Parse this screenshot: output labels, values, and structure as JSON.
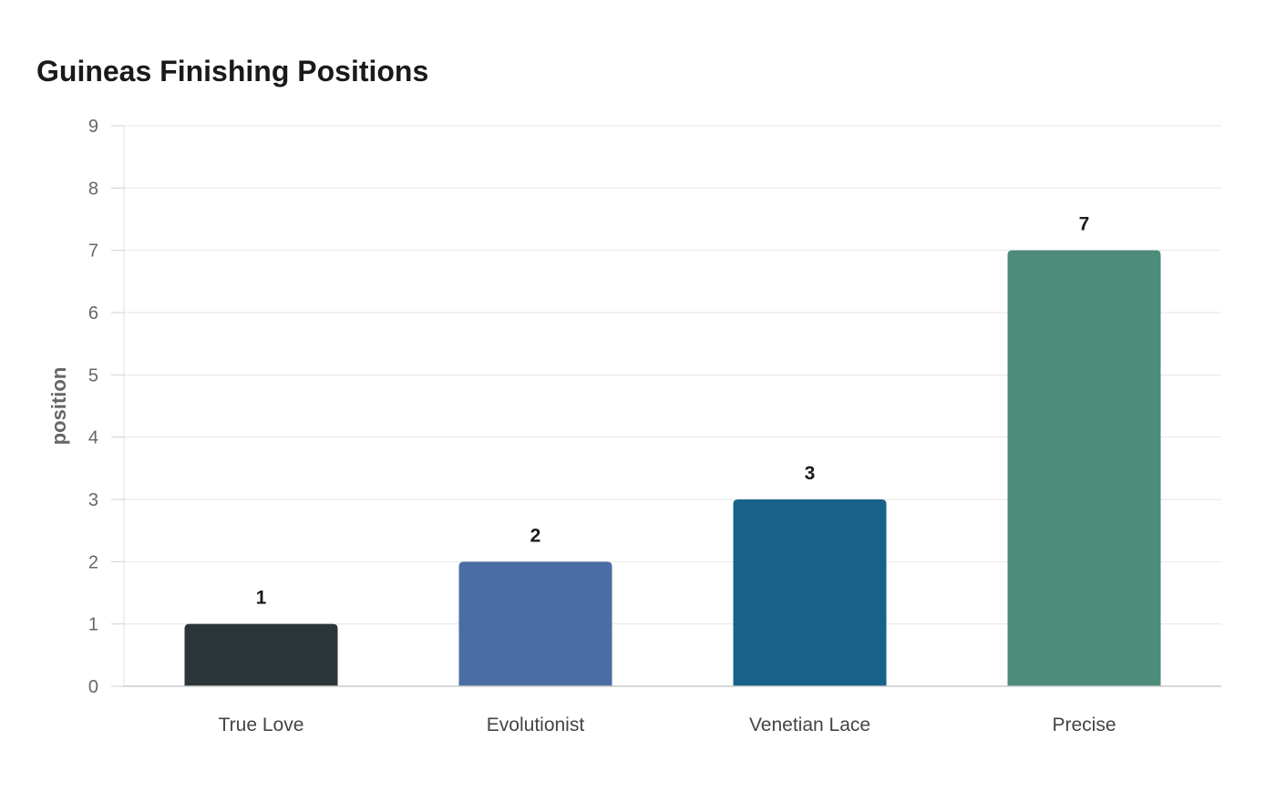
{
  "chart_data": {
    "type": "bar",
    "title": "Guineas Finishing Positions",
    "xlabel": "",
    "ylabel": "position",
    "categories": [
      "True Love",
      "Evolutionist",
      "Venetian Lace",
      "Precise"
    ],
    "values": [
      1,
      2,
      3,
      7
    ],
    "ylim": [
      0,
      9
    ],
    "yticks": [
      "0",
      "1",
      "2",
      "3",
      "4",
      "5",
      "6",
      "7",
      "8",
      "9"
    ],
    "data_labels": [
      "1",
      "2",
      "3",
      "7"
    ],
    "bar_colors": [
      "#2c3538",
      "#4a6ea3",
      "#186288",
      "#4d8c7a"
    ],
    "grid": true,
    "legend": false
  }
}
